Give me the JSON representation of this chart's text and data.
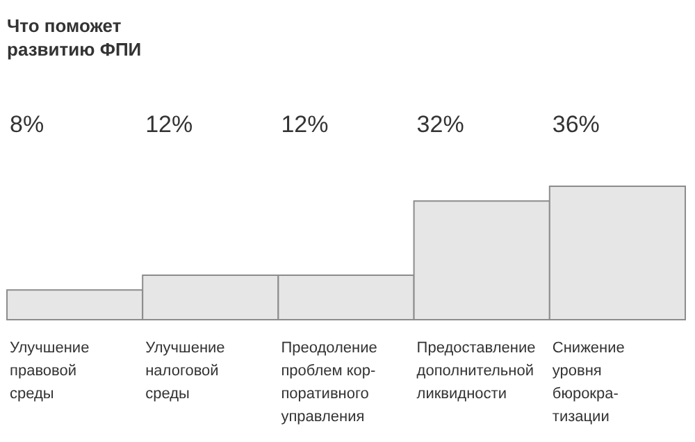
{
  "chart_data": {
    "type": "bar",
    "title": "Что поможет\nразвитию ФПИ",
    "categories": [
      "Улучшение\nправовой\nсреды",
      "Улучшение\nналоговой\nсреды",
      "Преодоление\nпроблем кор-\nпоративного\nуправления",
      "Предоставление\nдополнительной\nликвидности",
      "Снижение\nуровня\nбюрокра-\nтизации"
    ],
    "values": [
      8,
      12,
      12,
      32,
      36
    ],
    "value_labels": [
      "8%",
      "12%",
      "12%",
      "32%",
      "36%"
    ],
    "color": "#e6e6e6"
  }
}
